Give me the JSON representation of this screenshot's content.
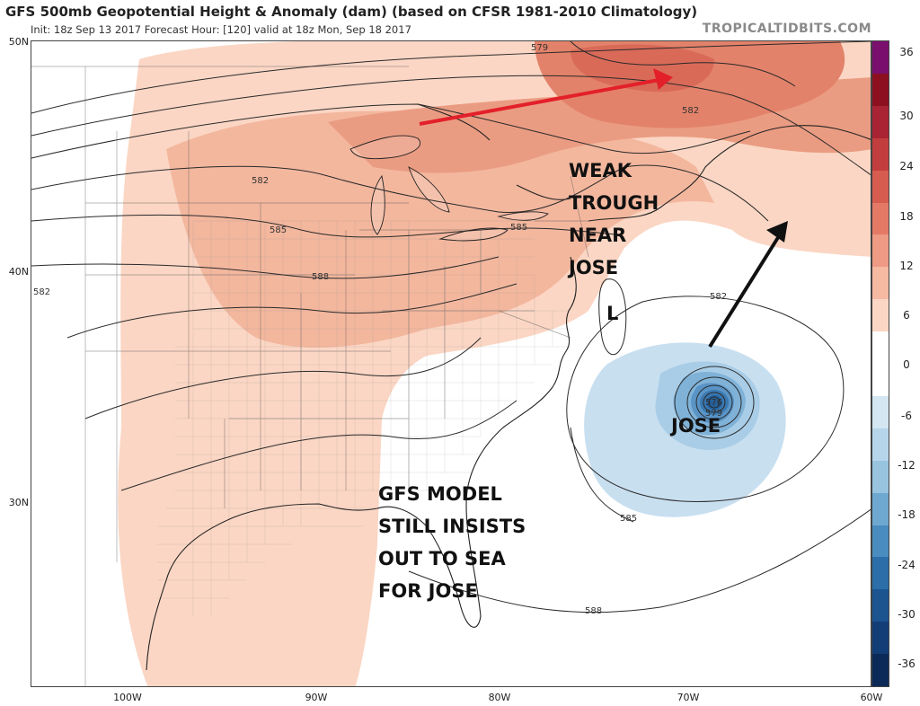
{
  "header": {
    "title": "GFS 500mb Geopotential Height & Anomaly (dam) (based on CFSR 1981-2010 Climatology)",
    "subtitle": "Init: 18z Sep 13 2017   Forecast Hour: [120]   valid at 18z Mon, Sep 18 2017",
    "site": "TROPICALTIDBITS.COM"
  },
  "axes": {
    "lat_labels": [
      "50N",
      "40N",
      "30N"
    ],
    "lon_labels": [
      "100W",
      "90W",
      "80W",
      "70W",
      "60W"
    ]
  },
  "colorbar": {
    "labels": [
      "36",
      "30",
      "24",
      "18",
      "12",
      "6",
      "0",
      "-6",
      "-12",
      "-18",
      "-24",
      "-30",
      "-36"
    ],
    "colors": [
      "#7a0f6e",
      "#8c1020",
      "#a82434",
      "#c23e3e",
      "#d65c50",
      "#e47a66",
      "#ee9a84",
      "#f6b9a2",
      "#fbd6c4",
      "#ffffff",
      "#ffffff",
      "#d3e6f2",
      "#b6d5ea",
      "#98c4e0",
      "#6ea8d0",
      "#4a8cbf",
      "#2c6ea8",
      "#1c5490",
      "#123d76",
      "#0b2a58"
    ]
  },
  "contour_labels": [
    "579",
    "582",
    "582",
    "582",
    "585",
    "585",
    "588",
    "582",
    "576",
    "579",
    "585",
    "588"
  ],
  "annotations": {
    "trough": [
      "WEAK",
      "TROUGH",
      "NEAR",
      "JOSE"
    ],
    "low": "L",
    "storm": "JOSE",
    "model": [
      "GFS MODEL",
      "STILL INSISTS",
      "OUT TO SEA",
      "FOR JOSE"
    ]
  },
  "arrows": [
    {
      "name": "red-arrow",
      "color": "#e3202a"
    },
    {
      "name": "black-arrow",
      "color": "#111111"
    }
  ]
}
